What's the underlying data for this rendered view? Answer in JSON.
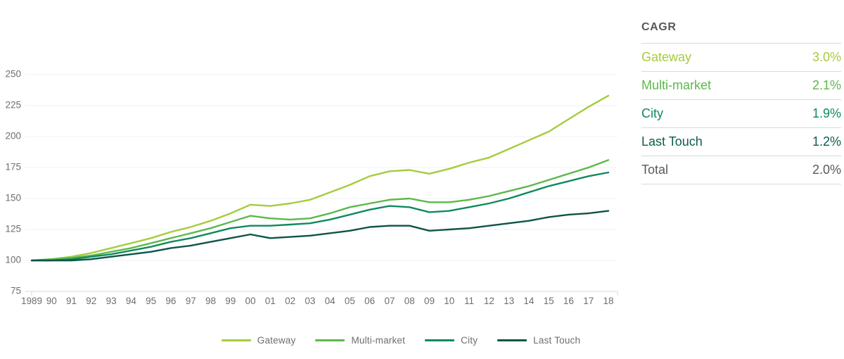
{
  "chart_data": {
    "type": "line",
    "title": "",
    "xlabel": "",
    "ylabel": "",
    "x_labels": [
      "1989",
      "90",
      "91",
      "92",
      "93",
      "94",
      "95",
      "96",
      "97",
      "98",
      "99",
      "00",
      "01",
      "02",
      "03",
      "04",
      "05",
      "06",
      "07",
      "08",
      "09",
      "10",
      "11",
      "12",
      "13",
      "14",
      "15",
      "16",
      "17",
      "18"
    ],
    "years": [
      1989,
      1990,
      1991,
      1992,
      1993,
      1994,
      1995,
      1996,
      1997,
      1998,
      1999,
      2000,
      2001,
      2002,
      2003,
      2004,
      2005,
      2006,
      2007,
      2008,
      2009,
      2010,
      2011,
      2012,
      2013,
      2014,
      2015,
      2016,
      2017,
      2018
    ],
    "ylim": [
      75,
      250
    ],
    "yticks": [
      75,
      100,
      125,
      150,
      175,
      200,
      225,
      250
    ],
    "grid": "horizontal",
    "legend_position": "bottom",
    "series": [
      {
        "name": "Gateway",
        "color": "#a5cc3e",
        "values": [
          100,
          101,
          103,
          106,
          110,
          114,
          118,
          123,
          127,
          132,
          138,
          145,
          144,
          146,
          149,
          155,
          161,
          168,
          172,
          173,
          170,
          174,
          179,
          183,
          190,
          197,
          204,
          214,
          224,
          233
        ]
      },
      {
        "name": "Multi-market",
        "color": "#5cb84c",
        "values": [
          100,
          101,
          102,
          104,
          107,
          110,
          114,
          118,
          122,
          126,
          131,
          136,
          134,
          133,
          134,
          138,
          143,
          146,
          149,
          150,
          147,
          147,
          149,
          152,
          156,
          160,
          165,
          170,
          175,
          181
        ]
      },
      {
        "name": "City",
        "color": "#0f8a60",
        "values": [
          100,
          100,
          101,
          103,
          105,
          108,
          111,
          115,
          118,
          122,
          126,
          128,
          128,
          129,
          130,
          133,
          137,
          141,
          144,
          143,
          139,
          140,
          143,
          146,
          150,
          155,
          160,
          164,
          168,
          171
        ]
      },
      {
        "name": "Last Touch",
        "color": "#0d5547",
        "values": [
          100,
          100,
          100,
          101,
          103,
          105,
          107,
          110,
          112,
          115,
          118,
          121,
          118,
          119,
          120,
          122,
          124,
          127,
          128,
          128,
          124,
          125,
          126,
          128,
          130,
          132,
          135,
          137,
          138,
          140
        ]
      }
    ]
  },
  "cagr_table": {
    "header": "CAGR",
    "rows": [
      {
        "label": "Gateway",
        "value": "3.0%",
        "color": "#a5cc3e"
      },
      {
        "label": "Multi-market",
        "value": "2.1%",
        "color": "#5cb84c"
      },
      {
        "label": "City",
        "value": "1.9%",
        "color": "#0f8a60"
      },
      {
        "label": "Last Touch",
        "value": "1.2%",
        "color": "#0d5c4e"
      },
      {
        "label": "Total",
        "value": "2.0%",
        "color": "#58595b"
      }
    ]
  },
  "colors": {
    "axis_text": "#6d6e71",
    "gridline": "#f2f2f2",
    "axis_line": "#d8d8d8",
    "divider": "#d9d9d9",
    "header_text": "#58595b"
  }
}
